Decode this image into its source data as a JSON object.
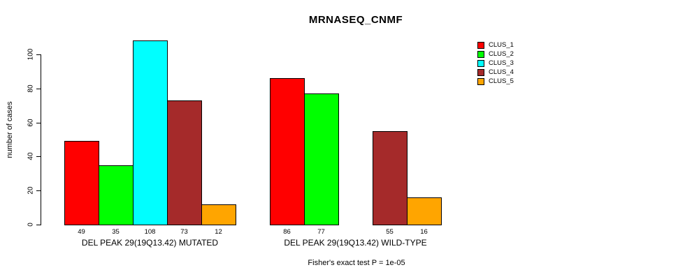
{
  "title": "MRNASEQ_CNMF",
  "footer_note": "Fisher's exact test P = 1e-05",
  "chart_data": {
    "type": "bar",
    "title": "MRNASEQ_CNMF",
    "xlabel": "",
    "ylabel": "number of cases",
    "ylim": [
      0,
      108
    ],
    "yticks": [
      0,
      20,
      40,
      60,
      80,
      100
    ],
    "grid": false,
    "legend_position": "top-right-outside",
    "bar_value_labels_shown": true,
    "zero_value_bars_hidden": true,
    "categories": [
      "DEL PEAK 29(19Q13.42) MUTATED",
      "DEL PEAK 29(19Q13.42) WILD-TYPE"
    ],
    "series": [
      {
        "name": "CLUS_1",
        "color": "#FF0000",
        "values": [
          49,
          86
        ]
      },
      {
        "name": "CLUS_2",
        "color": "#00FF00",
        "values": [
          35,
          77
        ]
      },
      {
        "name": "CLUS_3",
        "color": "#00FFFF",
        "values": [
          108,
          0
        ]
      },
      {
        "name": "CLUS_4",
        "color": "#A52A2A",
        "values": [
          73,
          55
        ]
      },
      {
        "name": "CLUS_5",
        "color": "#FFA500",
        "values": [
          12,
          16
        ]
      }
    ],
    "annotation": "Fisher's exact test P = 1e-05"
  }
}
